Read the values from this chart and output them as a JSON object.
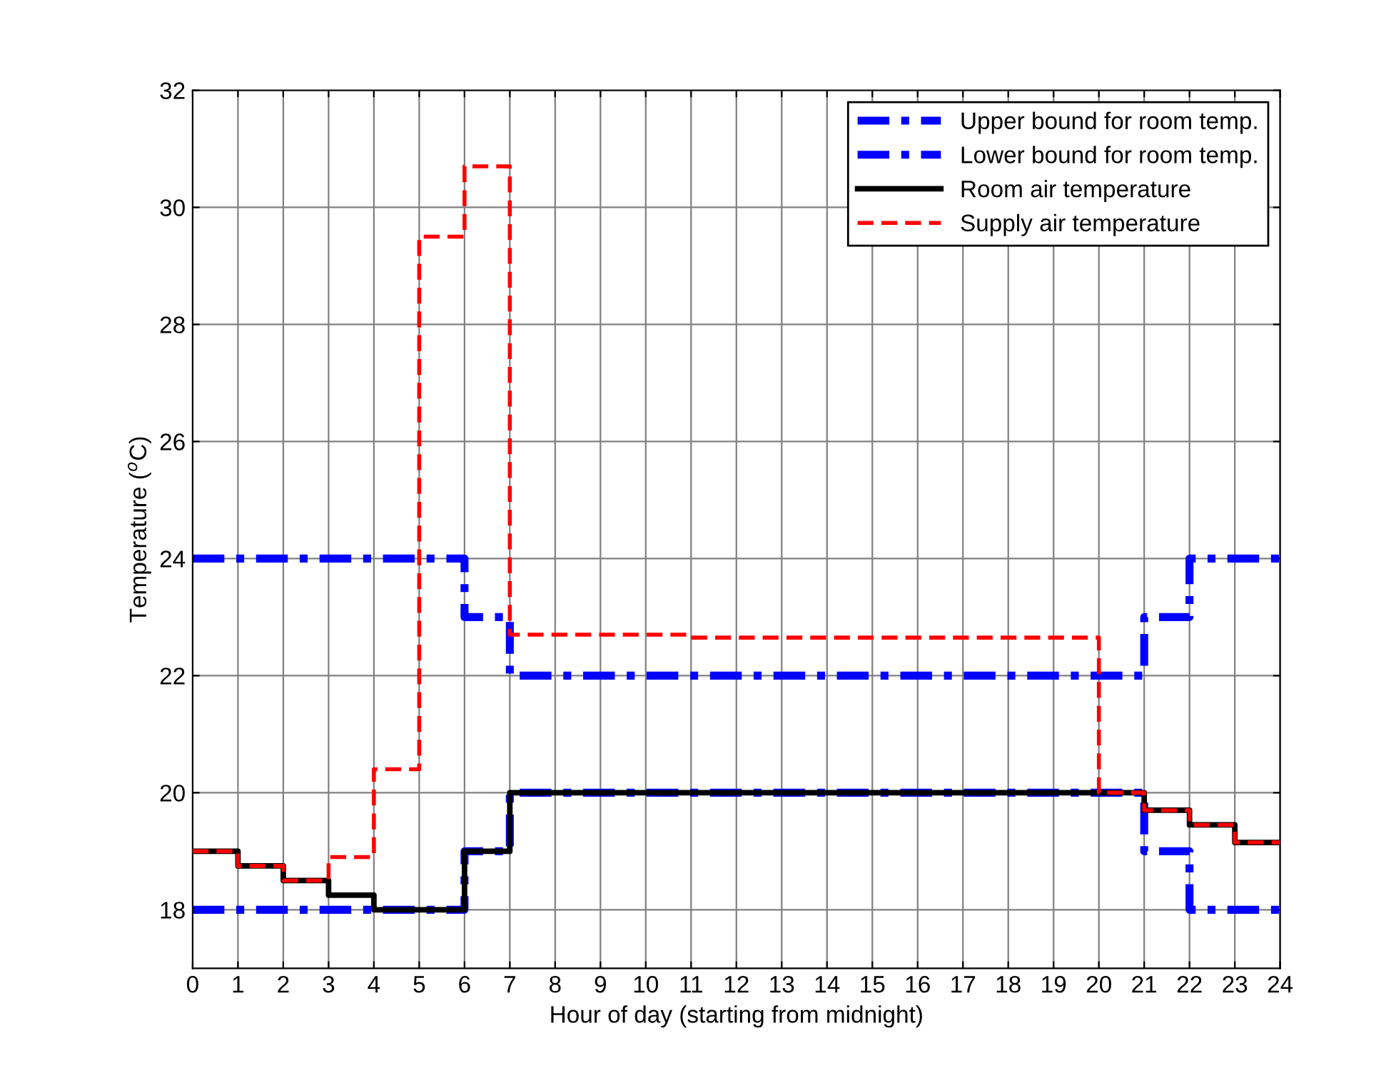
{
  "chart_data": {
    "type": "step",
    "xlabel": "Hour of day (starting from midnight)",
    "ylabel": "Temperature ($^{o}$C)",
    "x": [
      0,
      1,
      2,
      3,
      4,
      5,
      6,
      7,
      8,
      9,
      10,
      11,
      12,
      13,
      14,
      15,
      16,
      17,
      18,
      19,
      20,
      21,
      22,
      23,
      24
    ],
    "series": [
      {
        "name": "Upper bound for room temp.",
        "color": "#0000ff",
        "line_style": "dashdot",
        "values": [
          24,
          24,
          24,
          24,
          24,
          24,
          23,
          22,
          22,
          22,
          22,
          22,
          22,
          22,
          22,
          22,
          22,
          22,
          22,
          22,
          22,
          23,
          24,
          24,
          24
        ]
      },
      {
        "name": "Lower bound for room temp.",
        "color": "#0000ff",
        "line_style": "dashdot",
        "values": [
          18,
          18,
          18,
          18,
          18,
          18,
          19,
          20,
          20,
          20,
          20,
          20,
          20,
          20,
          20,
          20,
          20,
          20,
          20,
          20,
          20,
          19,
          18,
          18,
          18
        ]
      },
      {
        "name": "Room air temperature",
        "color": "#000000",
        "line_style": "solid",
        "values": [
          19,
          18.75,
          18.5,
          18.25,
          18,
          18,
          19,
          20,
          20,
          20,
          20,
          20,
          20,
          20,
          20,
          20,
          20,
          20,
          20,
          20,
          20,
          19.7,
          19.45,
          19.15,
          19.15
        ]
      },
      {
        "name": "Supply air temperature",
        "color": "#ff0000",
        "line_style": "dashed",
        "values": [
          19,
          18.75,
          18.5,
          18.9,
          20.4,
          29.5,
          30.7,
          22.7,
          22.7,
          22.7,
          22.7,
          22.65,
          22.65,
          22.65,
          22.65,
          22.65,
          22.65,
          22.65,
          22.65,
          22.65,
          20,
          19.7,
          19.45,
          19.15,
          19.15
        ]
      }
    ],
    "xlim": [
      0,
      24
    ],
    "xticks": [
      0,
      1,
      2,
      3,
      4,
      5,
      6,
      7,
      8,
      9,
      10,
      11,
      12,
      13,
      14,
      15,
      16,
      17,
      18,
      19,
      20,
      21,
      22,
      23,
      24
    ],
    "ylim": [
      17,
      32
    ],
    "yticks": [
      18,
      20,
      22,
      24,
      26,
      28,
      30,
      32
    ],
    "grid": true,
    "legend": "top right"
  }
}
